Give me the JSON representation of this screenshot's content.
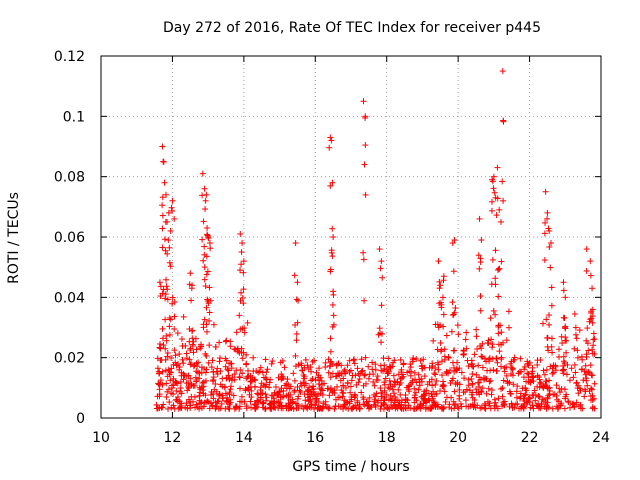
{
  "chart_data": {
    "type": "scatter",
    "title": "Day 272 of 2016, Rate Of TEC Index for receiver p445",
    "xlabel": "GPS time / hours",
    "ylabel": "ROTI / TECUs",
    "xlim": [
      10,
      24
    ],
    "ylim": [
      0,
      0.12
    ],
    "xticks": [
      10,
      12,
      14,
      16,
      18,
      20,
      22,
      24
    ],
    "yticks": [
      0,
      0.02,
      0.04,
      0.06,
      0.08,
      0.1,
      0.12
    ],
    "xtick_labels": [
      "10",
      "12",
      "14",
      "16",
      "18",
      "20",
      "22",
      "24"
    ],
    "ytick_labels": [
      "0",
      "0.02",
      "0.04",
      "0.06",
      "0.08",
      "0.1",
      "0.12"
    ],
    "grid": true,
    "marker": "+",
    "color": "#ff0000",
    "time_range": [
      11.55,
      23.85
    ],
    "bulk_range": [
      0.003,
      0.02
    ],
    "series": [
      {
        "name": "ROTI",
        "x": [
          11.65,
          11.72,
          11.74,
          11.78,
          11.82,
          11.85,
          11.9,
          11.95,
          12.0,
          12.05,
          12.5,
          12.55,
          12.85,
          12.9,
          12.93,
          12.95,
          12.97,
          13.0,
          13.05,
          13.9,
          13.95,
          14.0,
          15.45,
          15.5,
          16.42,
          16.45,
          16.48,
          16.5,
          17.35,
          17.4,
          17.8,
          17.85,
          19.45,
          19.5,
          19.6,
          19.85,
          19.9,
          20.6,
          20.65,
          20.95,
          21.0,
          21.05,
          21.1,
          21.15,
          21.2,
          21.25,
          22.45,
          22.5,
          22.55,
          22.6,
          22.95,
          23.0,
          23.6,
          23.7,
          23.75,
          23.8
        ],
        "y": [
          0.045,
          0.09,
          0.085,
          0.078,
          0.074,
          0.065,
          0.068,
          0.062,
          0.072,
          0.066,
          0.048,
          0.044,
          0.081,
          0.076,
          0.072,
          0.074,
          0.063,
          0.06,
          0.058,
          0.061,
          0.058,
          0.052,
          0.058,
          0.045,
          0.093,
          0.092,
          0.078,
          0.06,
          0.105,
          0.1,
          0.056,
          0.052,
          0.052,
          0.044,
          0.047,
          0.058,
          0.059,
          0.066,
          0.059,
          0.079,
          0.08,
          0.073,
          0.083,
          0.069,
          0.065,
          0.115,
          0.075,
          0.068,
          0.062,
          0.058,
          0.045,
          0.04,
          0.056,
          0.052,
          0.043,
          0.028
        ]
      }
    ]
  }
}
